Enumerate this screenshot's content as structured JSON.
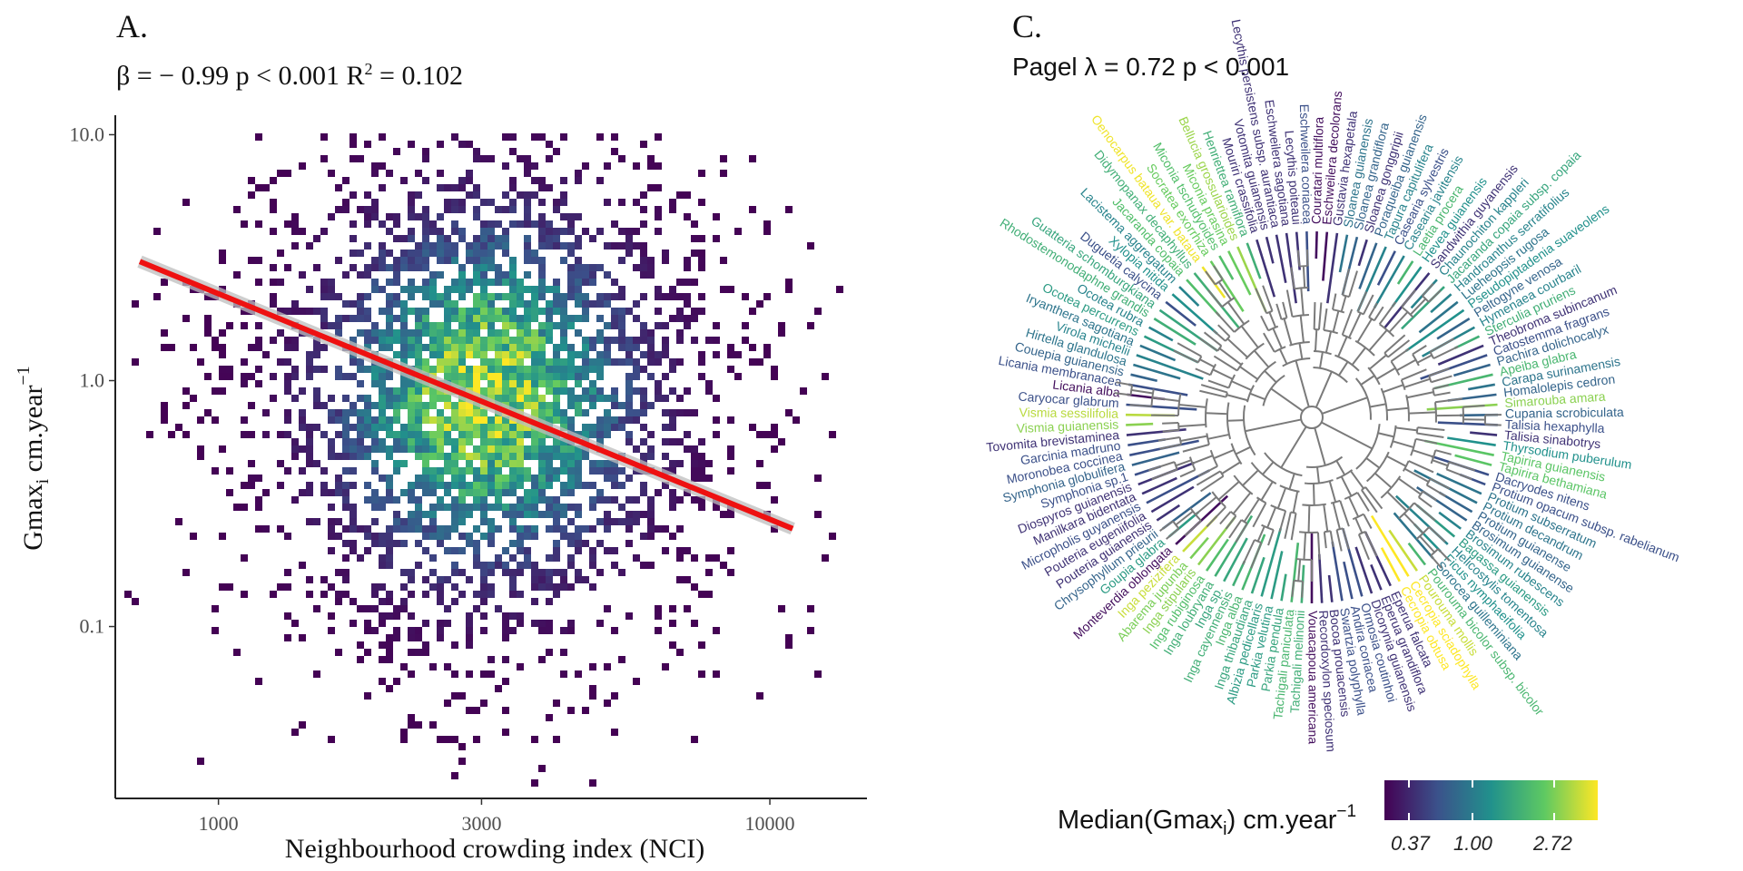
{
  "panel_a": {
    "label": "A.",
    "stat_beta": "β = − 0.99",
    "stat_p": "p < 0.001",
    "stat_r2_prefix": "R",
    "stat_r2_sup": "2",
    "stat_r2_value": "= 0.102"
  },
  "panel_c": {
    "label": "C.",
    "stat": "Pagel λ = 0.72 p < 0.001"
  },
  "chart_data": [
    {
      "type": "heatmap",
      "title": "",
      "xlabel": "Neighbourhood crowding index (NCI)",
      "ylabel_main": "Gmax",
      "ylabel_sub": "i",
      "ylabel_rest": " cm.year",
      "ylabel_sup": "−1",
      "x_scale": "log10",
      "y_scale": "log10",
      "xlim": [
        650,
        15000
      ],
      "ylim": [
        0.02,
        12
      ],
      "x_ticks": [
        1000,
        3000,
        10000
      ],
      "x_tick_labels": [
        "1000",
        "3000",
        "10000"
      ],
      "y_ticks": [
        0.1,
        1.0,
        10.0
      ],
      "y_tick_labels": [
        "0.1",
        "1.0",
        "10.0"
      ],
      "grid": false,
      "fit_line": {
        "color": "#ee1111",
        "x": [
          720,
          11000
        ],
        "y": [
          3.05,
          0.25
        ]
      },
      "density_center": {
        "nci": 3000,
        "gmax": 0.9
      },
      "colorscale": [
        "#440154",
        "#3b528b",
        "#21918c",
        "#5ec962",
        "#fde725"
      ]
    },
    {
      "type": "circular-phylogeny",
      "colorbar_title_main": "Median(Gmax",
      "colorbar_title_sub": "i",
      "colorbar_title_rest": ") cm.year",
      "colorbar_title_sup": "−1",
      "colorbar_ticks": [
        "0.37",
        "1.00",
        "2.72"
      ],
      "colorbar_colors": [
        "#440154",
        "#3b528b",
        "#21918c",
        "#5ec962",
        "#fde725"
      ],
      "tips": [
        {
          "name": "Couratari multiflora",
          "value": 0.4
        },
        {
          "name": "Eschweilera decolorans",
          "value": 0.4
        },
        {
          "name": "Gustavia hexapetala",
          "value": 0.5
        },
        {
          "name": "Sloanea guianensis",
          "value": 0.8
        },
        {
          "name": "Sloanea grandiflora",
          "value": 0.7
        },
        {
          "name": "Sloanea gonggripii",
          "value": 0.5
        },
        {
          "name": "Poraqueiba guianensis",
          "value": 0.7
        },
        {
          "name": "Tapura capitulifera",
          "value": 0.9
        },
        {
          "name": "Casearia sylvestris",
          "value": 0.6
        },
        {
          "name": "Casearia javitensis",
          "value": 0.9
        },
        {
          "name": "Laetia procera",
          "value": 1.4
        },
        {
          "name": "Hevea guianensis",
          "value": 1.0
        },
        {
          "name": "Sandwithia guyanensis",
          "value": 0.5
        },
        {
          "name": "Chaunochiton kappleri",
          "value": 0.9
        },
        {
          "name": "Jacaranda copaia subsp. copaia",
          "value": 1.2
        },
        {
          "name": "Handroanthus serratifolius",
          "value": 0.9
        },
        {
          "name": "Lueheopsis rugosa",
          "value": 0.8
        },
        {
          "name": "Pseudopiptadenia suaveolens",
          "value": 1.0
        },
        {
          "name": "Peltogyne venosa",
          "value": 0.7
        },
        {
          "name": "Hymenaea courbaril",
          "value": 0.9
        },
        {
          "name": "Sterculia pruriens",
          "value": 1.3
        },
        {
          "name": "Theobroma subincanum",
          "value": 0.5
        },
        {
          "name": "Catostemma fragrans",
          "value": 0.6
        },
        {
          "name": "Pachira dolichocalyx",
          "value": 0.7
        },
        {
          "name": "Apeiba glabra",
          "value": 1.4
        },
        {
          "name": "Carapa surinamensis",
          "value": 0.8
        },
        {
          "name": "Homalolepis cedron",
          "value": 0.7
        },
        {
          "name": "Simarouba amara",
          "value": 1.9
        },
        {
          "name": "Cupania scrobiculata",
          "value": 0.7
        },
        {
          "name": "Talisia hexaphylla",
          "value": 0.6
        },
        {
          "name": "Talisia sinabotrys",
          "value": 0.5
        },
        {
          "name": "Thyrsodium puberulum",
          "value": 1.0
        },
        {
          "name": "Tapirira guianensis",
          "value": 1.6
        },
        {
          "name": "Tapirira bethamiana",
          "value": 1.6
        },
        {
          "name": "Dacryodes nitens",
          "value": 0.6
        },
        {
          "name": "Protium opacum subsp. rabelianum",
          "value": 0.6
        },
        {
          "name": "Protium subserratum",
          "value": 0.8
        },
        {
          "name": "Protium decandrum",
          "value": 0.8
        },
        {
          "name": "Protium guianense",
          "value": 0.7
        },
        {
          "name": "Brosimum guianense",
          "value": 0.7
        },
        {
          "name": "Brosimum rubescens",
          "value": 0.9
        },
        {
          "name": "Bagassa guianensis",
          "value": 1.1
        },
        {
          "name": "Helicostylis tomentosa",
          "value": 0.9
        },
        {
          "name": "Ficus nymphaeifolia",
          "value": 1.0
        },
        {
          "name": "Sorocea guilleminiana",
          "value": 0.8
        },
        {
          "name": "Pourouma bicolor subsp. bicolor",
          "value": 1.4
        },
        {
          "name": "Pourouma mollis",
          "value": 2.3
        },
        {
          "name": "Cecropia sciadophylla",
          "value": 2.72
        },
        {
          "name": "Cecropia obtusa",
          "value": 2.72
        },
        {
          "name": "Eperua falcata",
          "value": 0.5
        },
        {
          "name": "Eperua grandiflora",
          "value": 0.5
        },
        {
          "name": "Dicorynia guianensis",
          "value": 0.5
        },
        {
          "name": "Ormosia coutinhoi",
          "value": 0.6
        },
        {
          "name": "Andira coriacea",
          "value": 0.6
        },
        {
          "name": "Swartzia polyphylla",
          "value": 0.6
        },
        {
          "name": "Bocoa prouacensis",
          "value": 0.5
        },
        {
          "name": "Recordoxylon speciosum",
          "value": 0.5
        },
        {
          "name": "Vouacapoua americana",
          "value": 0.4
        },
        {
          "name": "Tachigali melinonii",
          "value": 1.3
        },
        {
          "name": "Tachigali paniculata",
          "value": 1.4
        },
        {
          "name": "Parkia pendula",
          "value": 1.2
        },
        {
          "name": "Parkia velutina",
          "value": 1.1
        },
        {
          "name": "Albizia pedicellaris",
          "value": 1.1
        },
        {
          "name": "Inga thibaudiana",
          "value": 1.2
        },
        {
          "name": "Inga alba",
          "value": 1.4
        },
        {
          "name": "Inga cayennensis",
          "value": 1.3
        },
        {
          "name": "Inga sp.",
          "value": 1.2
        },
        {
          "name": "Inga loubryana",
          "value": 1.3
        },
        {
          "name": "Inga rubiginosa",
          "value": 1.5
        },
        {
          "name": "Inga stipularis",
          "value": 1.9
        },
        {
          "name": "Abarema jupunba",
          "value": 1.8
        },
        {
          "name": "Inga pezizifera",
          "value": 2.3
        },
        {
          "name": "Monteverdia oblongata",
          "value": 0.4
        },
        {
          "name": "Goupia glabra",
          "value": 1.1
        },
        {
          "name": "Chrysophyllum prieurii",
          "value": 0.7
        },
        {
          "name": "Pouteria guianensis",
          "value": 0.5
        },
        {
          "name": "Pouteria eugeniifolia",
          "value": 0.5
        },
        {
          "name": "Micropholis guyanensis",
          "value": 0.6
        },
        {
          "name": "Manilkara bidentata",
          "value": 0.5
        },
        {
          "name": "Diospyros guianensis",
          "value": 0.5
        },
        {
          "name": "Symphonia sp.1",
          "value": 0.6
        },
        {
          "name": "Symphonia globulifera",
          "value": 0.7
        },
        {
          "name": "Moronobea coccinea",
          "value": 0.6
        },
        {
          "name": "Garcinia madruno",
          "value": 0.6
        },
        {
          "name": "Tovomita brevistaminea",
          "value": 0.5
        },
        {
          "name": "Vismia guianensis",
          "value": 1.9
        },
        {
          "name": "Vismia sessilifolia",
          "value": 2.2
        },
        {
          "name": "Caryocar glabrum",
          "value": 0.6
        },
        {
          "name": "Licania alba",
          "value": 0.4
        },
        {
          "name": "Licania membranacea",
          "value": 0.6
        },
        {
          "name": "Couepia guianensis",
          "value": 0.7
        },
        {
          "name": "Hirtella glandulosa",
          "value": 0.8
        },
        {
          "name": "Virola michelii",
          "value": 0.9
        },
        {
          "name": "Iryanthera sagotiana",
          "value": 0.8
        },
        {
          "name": "Ocotea percurrens",
          "value": 1.1
        },
        {
          "name": "Ocotea rubra",
          "value": 0.9
        },
        {
          "name": "Rhodostemonodaphne grandis",
          "value": 1.3
        },
        {
          "name": "Guatteria schomburgkiana",
          "value": 1.2
        },
        {
          "name": "Duguetia calycina",
          "value": 0.6
        },
        {
          "name": "Xylopia nitida",
          "value": 1.0
        },
        {
          "name": "Lacistema aggregatum",
          "value": 0.9
        },
        {
          "name": "Jacaranda copaia",
          "value": 1.5
        },
        {
          "name": "Didymopanax decaphyllus",
          "value": 1.3
        },
        {
          "name": "Oenocarpus bataua var. bataua",
          "value": 2.6
        },
        {
          "name": "Socratea exorrhiza",
          "value": 1.7
        },
        {
          "name": "Miconia tschudyoides",
          "value": 1.5
        },
        {
          "name": "Miconia prasina",
          "value": 1.7
        },
        {
          "name": "Bellucia grossularioides",
          "value": 2.0
        },
        {
          "name": "Henriettea ramiflora",
          "value": 1.3
        },
        {
          "name": "Mouriri crassifolia",
          "value": 0.5
        },
        {
          "name": "Votomita guianensis",
          "value": 0.5
        },
        {
          "name": "Lecythis persistens subsp. aurantiaca",
          "value": 0.5
        },
        {
          "name": "Eschweilera sagotiana",
          "value": 0.5
        },
        {
          "name": "Lecythis poiteaui",
          "value": 0.5
        },
        {
          "name": "Eschweilera coriacea",
          "value": 0.6
        }
      ]
    }
  ]
}
